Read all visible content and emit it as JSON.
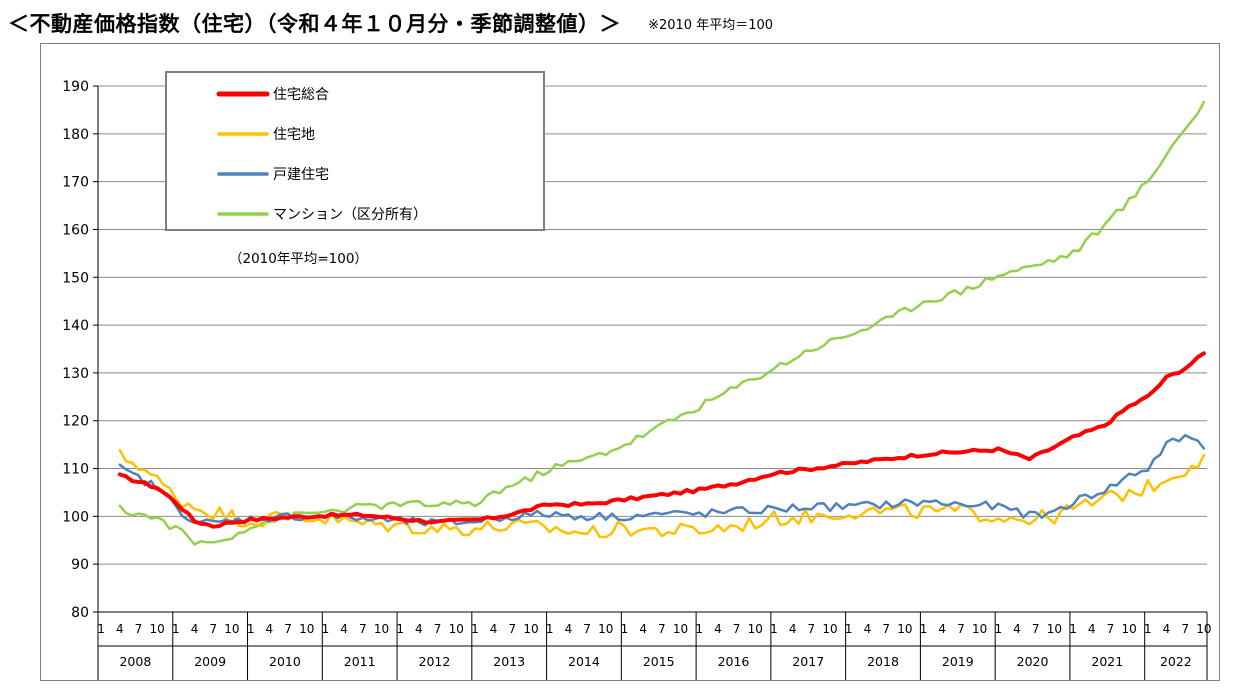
{
  "title": "＜不動産価格指数（住宅）（令和４年１０月分・季節調整値）＞",
  "base_note": "※2010 年平均＝100",
  "chart_data": {
    "type": "line",
    "title": "＜不動産価格指数（住宅）（令和４年１０月分・季節調整値）＞",
    "annotation": "（2010年平均=100）",
    "ylim": [
      80,
      190
    ],
    "yticks": [
      80,
      90,
      100,
      110,
      120,
      130,
      140,
      150,
      160,
      170,
      180,
      190
    ],
    "grid": "horizontal",
    "legend_position": "top-left",
    "x_start": "2008-04",
    "x_end": "2022-10",
    "years": [
      "2008",
      "2009",
      "2010",
      "2011",
      "2012",
      "2013",
      "2014",
      "2015",
      "2016",
      "2017",
      "2018",
      "2019",
      "2020",
      "2021",
      "2022"
    ],
    "month_ticks": [
      "1",
      "4",
      "7",
      "10"
    ],
    "series": [
      {
        "name": "住宅総合",
        "color": "#ff0000",
        "width": 4,
        "anchors": [
          [
            "2008-04",
            108.5
          ],
          [
            "2008-10",
            106
          ],
          [
            "2009-01",
            103
          ],
          [
            "2009-04",
            99
          ],
          [
            "2009-07",
            98
          ],
          [
            "2009-10",
            98.8
          ],
          [
            "2010-01",
            99.3
          ],
          [
            "2010-07",
            99.8
          ],
          [
            "2011-01",
            100.2
          ],
          [
            "2011-07",
            100.3
          ],
          [
            "2012-01",
            99.5
          ],
          [
            "2012-07",
            98.8
          ],
          [
            "2012-12",
            99.2
          ],
          [
            "2013-03",
            99.5
          ],
          [
            "2013-07",
            100.5
          ],
          [
            "2013-10",
            101.5
          ],
          [
            "2014-01",
            102.5
          ],
          [
            "2014-07",
            102.5
          ],
          [
            "2015-01",
            103.5
          ],
          [
            "2015-07",
            104.5
          ],
          [
            "2016-01",
            105.5
          ],
          [
            "2016-07",
            107
          ],
          [
            "2017-01",
            109
          ],
          [
            "2017-07",
            110
          ],
          [
            "2018-01",
            111
          ],
          [
            "2018-07",
            112
          ],
          [
            "2019-01",
            113
          ],
          [
            "2019-07",
            113.5
          ],
          [
            "2020-01",
            114
          ],
          [
            "2020-06",
            112
          ],
          [
            "2020-10",
            114.5
          ],
          [
            "2021-01",
            116.5
          ],
          [
            "2021-06",
            119
          ],
          [
            "2021-10",
            123
          ],
          [
            "2022-01",
            125
          ],
          [
            "2022-04",
            129
          ],
          [
            "2022-07",
            131
          ],
          [
            "2022-10",
            134
          ]
        ],
        "noise": 0.35
      },
      {
        "name": "住宅地",
        "color": "#ffc000",
        "width": 2.5,
        "anchors": [
          [
            "2008-04",
            112.5
          ],
          [
            "2008-07",
            111
          ],
          [
            "2008-10",
            107.5
          ],
          [
            "2009-01",
            104
          ],
          [
            "2009-04",
            102
          ],
          [
            "2009-07",
            101
          ],
          [
            "2010-01",
            99
          ],
          [
            "2010-07",
            100
          ],
          [
            "2011-01",
            99.5
          ],
          [
            "2011-07",
            98.5
          ],
          [
            "2012-01",
            98
          ],
          [
            "2012-07",
            97.5
          ],
          [
            "2013-01",
            97.5
          ],
          [
            "2013-07",
            98
          ],
          [
            "2014-01",
            97.5
          ],
          [
            "2014-07",
            96.5
          ],
          [
            "2015-01",
            97.5
          ],
          [
            "2015-07",
            97
          ],
          [
            "2016-01",
            97
          ],
          [
            "2016-07",
            98
          ],
          [
            "2017-01",
            99.5
          ],
          [
            "2017-07",
            100
          ],
          [
            "2018-01",
            101
          ],
          [
            "2018-07",
            101
          ],
          [
            "2019-01",
            101
          ],
          [
            "2019-07",
            101
          ],
          [
            "2020-01",
            100
          ],
          [
            "2020-07",
            99.5
          ],
          [
            "2020-10",
            100
          ],
          [
            "2021-01",
            101.5
          ],
          [
            "2021-07",
            104
          ],
          [
            "2022-01",
            106
          ],
          [
            "2022-07",
            110
          ],
          [
            "2022-10",
            112.5
          ]
        ],
        "noise": 1.6
      },
      {
        "name": "戸建住宅",
        "color": "#4f81bd",
        "width": 2.5,
        "anchors": [
          [
            "2008-04",
            110
          ],
          [
            "2008-10",
            106
          ],
          [
            "2009-01",
            102
          ],
          [
            "2009-04",
            99
          ],
          [
            "2009-07",
            98.5
          ],
          [
            "2010-01",
            99.5
          ],
          [
            "2010-07",
            100
          ],
          [
            "2011-01",
            100
          ],
          [
            "2011-07",
            99.5
          ],
          [
            "2012-01",
            99
          ],
          [
            "2012-07",
            98.5
          ],
          [
            "2013-01",
            99
          ],
          [
            "2013-07",
            100
          ],
          [
            "2014-01",
            100.5
          ],
          [
            "2014-07",
            100
          ],
          [
            "2015-01",
            100
          ],
          [
            "2015-07",
            100.5
          ],
          [
            "2016-01",
            100.5
          ],
          [
            "2016-07",
            101
          ],
          [
            "2017-01",
            101.5
          ],
          [
            "2017-07",
            102
          ],
          [
            "2018-01",
            102
          ],
          [
            "2018-07",
            102.5
          ],
          [
            "2019-01",
            103
          ],
          [
            "2019-07",
            102.5
          ],
          [
            "2020-01",
            102
          ],
          [
            "2020-07",
            100
          ],
          [
            "2020-10",
            101
          ],
          [
            "2021-01",
            103
          ],
          [
            "2021-07",
            106
          ],
          [
            "2021-10",
            108.5
          ],
          [
            "2022-01",
            110
          ],
          [
            "2022-04",
            115
          ],
          [
            "2022-07",
            116.5
          ],
          [
            "2022-09",
            116.5
          ],
          [
            "2022-10",
            114
          ]
        ],
        "noise": 0.9
      },
      {
        "name": "マンション（区分所有）",
        "color": "#92d050",
        "width": 2.5,
        "anchors": [
          [
            "2008-04",
            101.5
          ],
          [
            "2008-10",
            99.5
          ],
          [
            "2009-01",
            97.5
          ],
          [
            "2009-04",
            94.5
          ],
          [
            "2009-07",
            94.5
          ],
          [
            "2009-10",
            96
          ],
          [
            "2010-01",
            98
          ],
          [
            "2010-07",
            100
          ],
          [
            "2011-01",
            101
          ],
          [
            "2011-07",
            102
          ],
          [
            "2012-01",
            102.5
          ],
          [
            "2012-07",
            102.5
          ],
          [
            "2013-01",
            102.5
          ],
          [
            "2013-04",
            105
          ],
          [
            "2013-10",
            108
          ],
          [
            "2014-01",
            110
          ],
          [
            "2014-07",
            112
          ],
          [
            "2015-01",
            115
          ],
          [
            "2015-07",
            119
          ],
          [
            "2016-01",
            123
          ],
          [
            "2016-07",
            127
          ],
          [
            "2017-01",
            131
          ],
          [
            "2017-07",
            135
          ],
          [
            "2018-01",
            138
          ],
          [
            "2018-07",
            141
          ],
          [
            "2019-01",
            145
          ],
          [
            "2019-07",
            147
          ],
          [
            "2020-01",
            150.5
          ],
          [
            "2020-07",
            152.5
          ],
          [
            "2021-01",
            155
          ],
          [
            "2021-07",
            162
          ],
          [
            "2022-01",
            170
          ],
          [
            "2022-04",
            176
          ],
          [
            "2022-07",
            181
          ],
          [
            "2022-10",
            186.5
          ]
        ],
        "noise": 0.8
      }
    ]
  }
}
